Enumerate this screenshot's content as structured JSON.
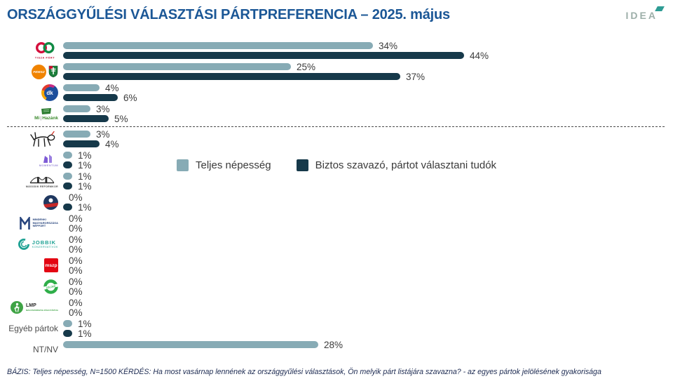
{
  "header": {
    "title": "ORSZÁGGYŰLÉSI VÁLASZTÁSI PÁRTPREFERENCIA – 2025. május",
    "brand": "IDEA"
  },
  "colors": {
    "series1": "#87ABB5",
    "series2": "#16394A",
    "title": "#1B5796",
    "brand_teal": "#2E9C94"
  },
  "legend": {
    "series1_label": "Teljes népesség",
    "series2_label": "Biztos szavazó, pártot választani tudók"
  },
  "logos": {
    "tisza": "TISZA PÁRT",
    "fidesz": "FIDESZ",
    "dk": "dk",
    "mi_hazank_mi": "Mi",
    "mi_hazank_hazank": "Hazánk",
    "momentum": "MOMENTUM",
    "reformkor": "MÁSODIK REFORMKOR",
    "mmn1": "MINDENKI",
    "mmn2": "MAGYARORSZÁGA",
    "mmn3": "NÉPPÁRT",
    "jobbik": "JOBBIK",
    "jobbik_sub": "KONZERVATÍVOK",
    "mszp": "mszp",
    "zoldek": "ZÖLDEK",
    "lmp": "LMP",
    "lmp_sub": "MAGYARORSZÁG ZÖLD PÁRTJA"
  },
  "footer": {
    "text": "BÁZIS: Teljes népesség, N=1500  KÉRDÉS:  Ha most vasárnap lennének az országgyűlési választások, Ön melyik párt listájára szavazna? - az egyes pártok jelölésének gyakorisága"
  },
  "chart_data": {
    "type": "bar",
    "orientation": "horizontal",
    "title": "ORSZÁGGYŰLÉSI VÁLASZTÁSI PÁRTPREFERENCIA – 2025. május",
    "value_suffix": "%",
    "xlim": [
      0,
      46
    ],
    "legend_position": "middle-right of rows 6-7",
    "grid": false,
    "separator_after_index": 3,
    "categories": [
      "TISZA Párt",
      "FIDESZ–KDNP",
      "DK",
      "Mi Hazánk",
      "MKKP",
      "Momentum",
      "Második Reformkor",
      "Nép Pártján",
      "Mindenki Magyarországa Néppárt",
      "Jobbik Konzervatívok",
      "MSZP",
      "Zöldek",
      "LMP",
      "Egyéb pártok",
      "NT/NV"
    ],
    "series": [
      {
        "name": "Teljes népesség",
        "color": "#87ABB5",
        "values": [
          34,
          25,
          4,
          3,
          3,
          1,
          1,
          0,
          0,
          0,
          0,
          0,
          0,
          1,
          28
        ]
      },
      {
        "name": "Biztos szavazó, pártot választani tudók",
        "color": "#16394A",
        "values": [
          44,
          37,
          6,
          5,
          4,
          1,
          1,
          1,
          0,
          0,
          0,
          0,
          0,
          1,
          null
        ]
      }
    ]
  }
}
